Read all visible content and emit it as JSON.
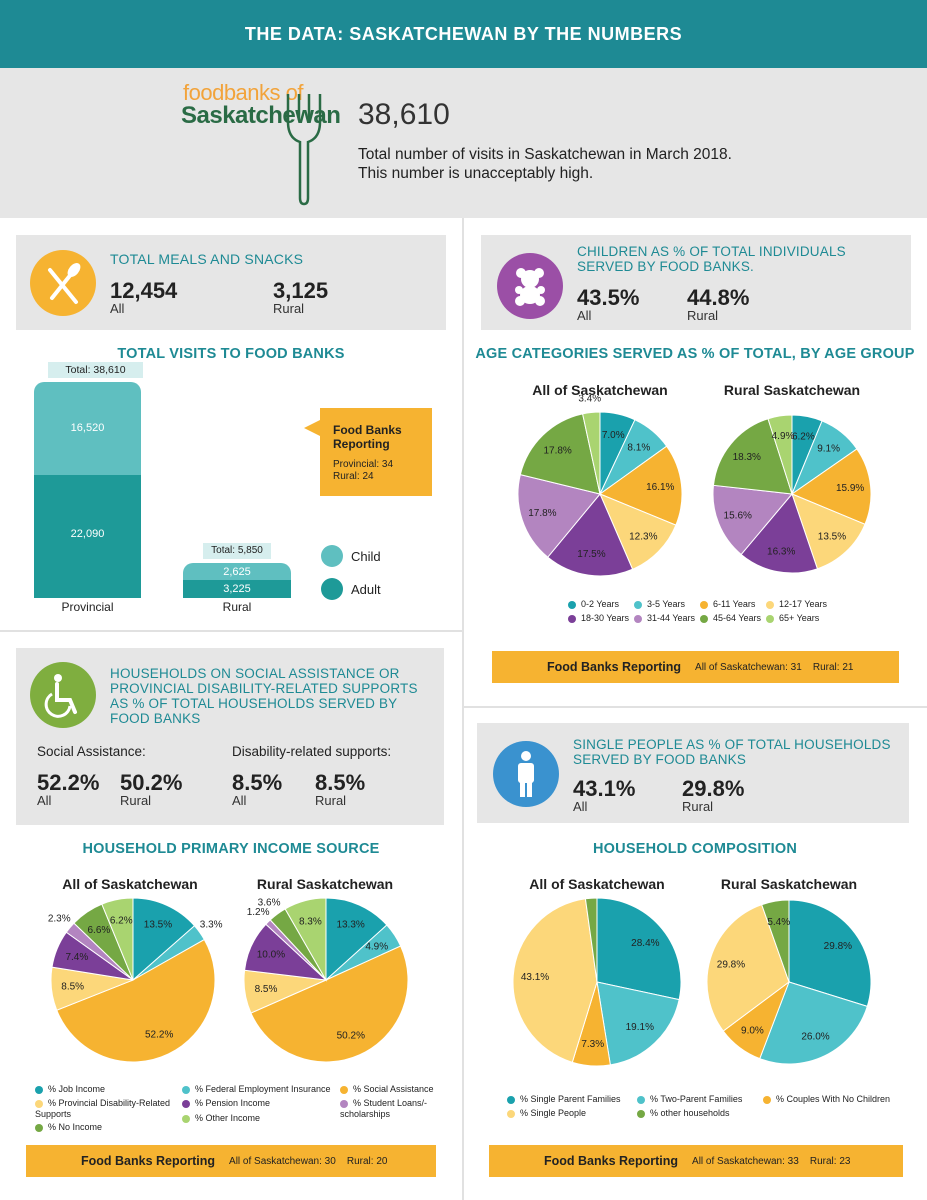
{
  "header": {
    "title": "THE DATA: SASKATCHEWAN BY THE NUMBERS"
  },
  "hero": {
    "logo_line1": "foodbanks of",
    "logo_line2": "Saskatchewan",
    "visits": "38,610",
    "desc_line1": "Total number of visits in Saskatchewan in March 2018.",
    "desc_line2": "This number is unacceptably high."
  },
  "meals": {
    "title": "TOTAL MEALS AND SNACKS",
    "all_value": "12,454",
    "all_label": "All",
    "rural_value": "3,125",
    "rural_label": "Rural",
    "icon": "fork-knife-icon"
  },
  "children": {
    "title_line1": "CHILDREN AS % OF TOTAL INDIVIDUALS",
    "title_line2": "SERVED BY FOOD BANKS.",
    "all_value": "43.5%",
    "all_label": "All",
    "rural_value": "44.8%",
    "rural_label": "Rural",
    "icon": "teddy-bear-icon"
  },
  "visits_section": {
    "title": "TOTAL VISITS TO FOOD BANKS",
    "provincial_total": "Total: 38,610",
    "provincial_child": "16,520",
    "provincial_adult": "22,090",
    "provincial_label": "Provincial",
    "rural_total": "Total: 5,850",
    "rural_child": "2,625",
    "rural_adult": "3,225",
    "rural_label": "Rural",
    "reporting_title_1": "Food Banks",
    "reporting_title_2": "Reporting",
    "reporting_provincial": "Provincial: 34",
    "reporting_rural": "Rural: 24",
    "legend_child": "Child",
    "legend_adult": "Adult"
  },
  "age_section": {
    "title": "AGE CATEGORIES SERVED AS % OF TOTAL, BY AGE GROUP",
    "all_title": "All of Saskatchewan",
    "rural_title": "Rural Saskatchewan",
    "banner_title": "Food Banks Reporting",
    "banner_text": "All of Saskatchewan: 31    Rural: 21",
    "legend": [
      "0-2 Years",
      "3-5 Years",
      "6-11 Years",
      "12-17 Years",
      "18-30 Years",
      "31-44 Years",
      "45-64 Years",
      "65+ Years"
    ]
  },
  "assistance": {
    "title_line1": "HOUSEHOLDS ON SOCIAL ASSISTANCE OR",
    "title_line2": "PROVINCIAL DISABILITY-RELATED SUPPORTS",
    "title_line3": "AS % OF TOTAL HOUSEHOLDS SERVED BY",
    "title_line4": "FOOD BANKS",
    "icon": "wheelchair-icon",
    "social_label": "Social Assistance:",
    "social_all": "52.2%",
    "social_all_label": "All",
    "social_rural": "50.2%",
    "social_rural_label": "Rural",
    "disability_label": "Disability-related supports:",
    "disability_all": "8.5%",
    "disability_all_label": "All",
    "disability_rural": "8.5%",
    "disability_rural_label": "Rural"
  },
  "single": {
    "title_line1": "SINGLE PEOPLE AS % OF TOTAL HOUSEHOLDS",
    "title_line2": "SERVED BY FOOD BANKS",
    "icon": "person-icon",
    "all_value": "43.1%",
    "all_label": "All",
    "rural_value": "29.8%",
    "rural_label": "Rural"
  },
  "income_section": {
    "title": "HOUSEHOLD PRIMARY INCOME SOURCE",
    "all_title": "All of Saskatchewan",
    "rural_title": "Rural Saskatchewan",
    "legend": [
      "% Job Income",
      "% Federal Employment Insurance",
      "% Social Assistance",
      "% Provincial Disability-Related Supports",
      "% Pension Income",
      "% Student Loans/-scholarships",
      "% No Income",
      "% Other Income"
    ],
    "banner_title": "Food Banks Reporting",
    "banner_text": "All of Saskatchewan: 30    Rural: 20"
  },
  "composition_section": {
    "title": "HOUSEHOLD COMPOSITION",
    "all_title": "All of Saskatchewan",
    "rural_title": "Rural Saskatchewan",
    "legend": [
      "% Single Parent Families",
      "% Two-Parent Families",
      "% Couples With No Children",
      "% Single People",
      "% other households"
    ],
    "banner_title": "Food Banks Reporting",
    "banner_text": "All of Saskatchewan: 33    Rural: 23"
  },
  "colors": {
    "teal": "#1e8a94",
    "teal_light": "#5fbfc0",
    "c_0_2": "#1aa1ad",
    "c_3_5": "#4fc2ca",
    "c_6_11": "#f6b331",
    "c_12_17": "#fcd77a",
    "c_18_30": "#7b3f98",
    "c_31_44": "#b385c0",
    "c_45_64": "#75a844",
    "c_65": "#a9d470",
    "banner": "#f6b331",
    "box": "#e6e6e6"
  },
  "chart_data": [
    {
      "type": "bar",
      "title": "TOTAL VISITS TO FOOD BANKS",
      "categories": [
        "Provincial",
        "Rural"
      ],
      "series": [
        {
          "name": "Child",
          "values": [
            16520,
            2625
          ]
        },
        {
          "name": "Adult",
          "values": [
            22090,
            3225
          ]
        }
      ],
      "totals": [
        38610,
        5850
      ]
    },
    {
      "type": "pie",
      "title": "All of Saskatchewan",
      "group": "age",
      "labels": [
        "0-2 Years",
        "3-5 Years",
        "6-11 Years",
        "12-17 Years",
        "18-30 Years",
        "31-44 Years",
        "45-64 Years",
        "65+ Years"
      ],
      "values": [
        7.0,
        8.1,
        16.1,
        12.3,
        17.5,
        17.8,
        17.8,
        3.4
      ],
      "value_labels": [
        "7.0%",
        "8.1%",
        "16.1%",
        "12.3%",
        "17.5%",
        "17.8%",
        "17.8%",
        "3.4%"
      ]
    },
    {
      "type": "pie",
      "title": "Rural Saskatchewan",
      "group": "age",
      "labels": [
        "0-2 Years",
        "3-5 Years",
        "6-11 Years",
        "12-17 Years",
        "18-30 Years",
        "31-44 Years",
        "45-64 Years",
        "65+ Years"
      ],
      "values": [
        6.2,
        9.1,
        15.9,
        13.5,
        16.3,
        15.6,
        18.3,
        4.9
      ],
      "value_labels": [
        "6.2%",
        "9.1%",
        "15.9%",
        "13.5%",
        "16.3%",
        "15.6%",
        "18.3%",
        "4.9%"
      ]
    },
    {
      "type": "pie",
      "title": "All of Saskatchewan",
      "group": "income",
      "labels": [
        "% Job Income",
        "% Federal Employment Insurance",
        "% Social Assistance",
        "% Provincial Disability-Related Supports",
        "% Pension Income",
        "% Student Loans/-scholarships",
        "% No Income",
        "% Other Income"
      ],
      "values": [
        13.5,
        3.3,
        52.2,
        8.5,
        7.4,
        2.3,
        6.6,
        6.2
      ],
      "value_labels": [
        "13.5%",
        "3.3%",
        "52.2%",
        "8.5%",
        "7.4%",
        "2.3%",
        "6.6%",
        "6.2%"
      ]
    },
    {
      "type": "pie",
      "title": "Rural Saskatchewan",
      "group": "income",
      "labels": [
        "% Job Income",
        "% Federal Employment Insurance",
        "% Social Assistance",
        "% Provincial Disability-Related Supports",
        "% Pension Income",
        "% Student Loans/-scholarships",
        "% No Income",
        "% Other Income"
      ],
      "values": [
        13.3,
        4.9,
        50.2,
        8.5,
        10.0,
        1.2,
        3.6,
        8.3
      ],
      "value_labels": [
        "13.3%",
        "4.9%",
        "50.2%",
        "8.5%",
        "10.0%",
        "1.2%",
        "3.6%",
        "8.3%"
      ]
    },
    {
      "type": "pie",
      "title": "All of Saskatchewan",
      "group": "composition",
      "labels": [
        "% Single Parent Families",
        "% Two-Parent Families",
        "% Couples With No Children",
        "% Single People",
        "% other households"
      ],
      "values": [
        28.4,
        19.1,
        7.3,
        43.1,
        2.2
      ],
      "value_labels": [
        "28.4%",
        "19.1%",
        "7.3%",
        "43.1%",
        "2.2%"
      ]
    },
    {
      "type": "pie",
      "title": "Rural Saskatchewan",
      "group": "composition",
      "labels": [
        "% Single Parent Families",
        "% Two-Parent Families",
        "% Couples With No Children",
        "% Single People",
        "% other households"
      ],
      "values": [
        29.8,
        26.0,
        9.0,
        29.8,
        5.4
      ],
      "value_labels": [
        "29.8%",
        "26.0%",
        "9.0%",
        "29.8%",
        "5.4%"
      ]
    }
  ]
}
